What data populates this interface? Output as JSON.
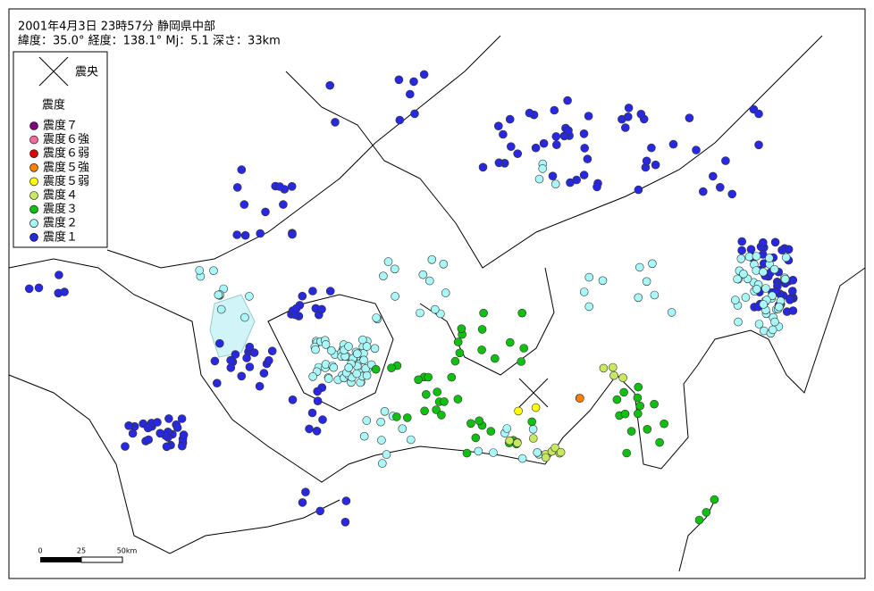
{
  "header": {
    "line1": "2001年4月3日 23時57分 静岡県中部",
    "line2": "緯度：35.0° 経度：138.1° Mj：5.1 深さ：33km"
  },
  "legend": {
    "epicenter": "震央",
    "title": "震度",
    "items": [
      {
        "label": "震度７",
        "color": "#800080"
      },
      {
        "label": "震度６強",
        "color": "#ff6699"
      },
      {
        "label": "震度６弱",
        "color": "#e00000"
      },
      {
        "label": "震度５強",
        "color": "#ff8000"
      },
      {
        "label": "震度５弱",
        "color": "#ffff00"
      },
      {
        "label": "震度４",
        "color": "#c8e860"
      },
      {
        "label": "震度３",
        "color": "#10c010"
      },
      {
        "label": "震度２",
        "color": "#a8f8f8"
      },
      {
        "label": "震度１",
        "color": "#2828e0"
      }
    ]
  },
  "scale": {
    "start": "0",
    "mid": "25",
    "end": "50km"
  }
}
